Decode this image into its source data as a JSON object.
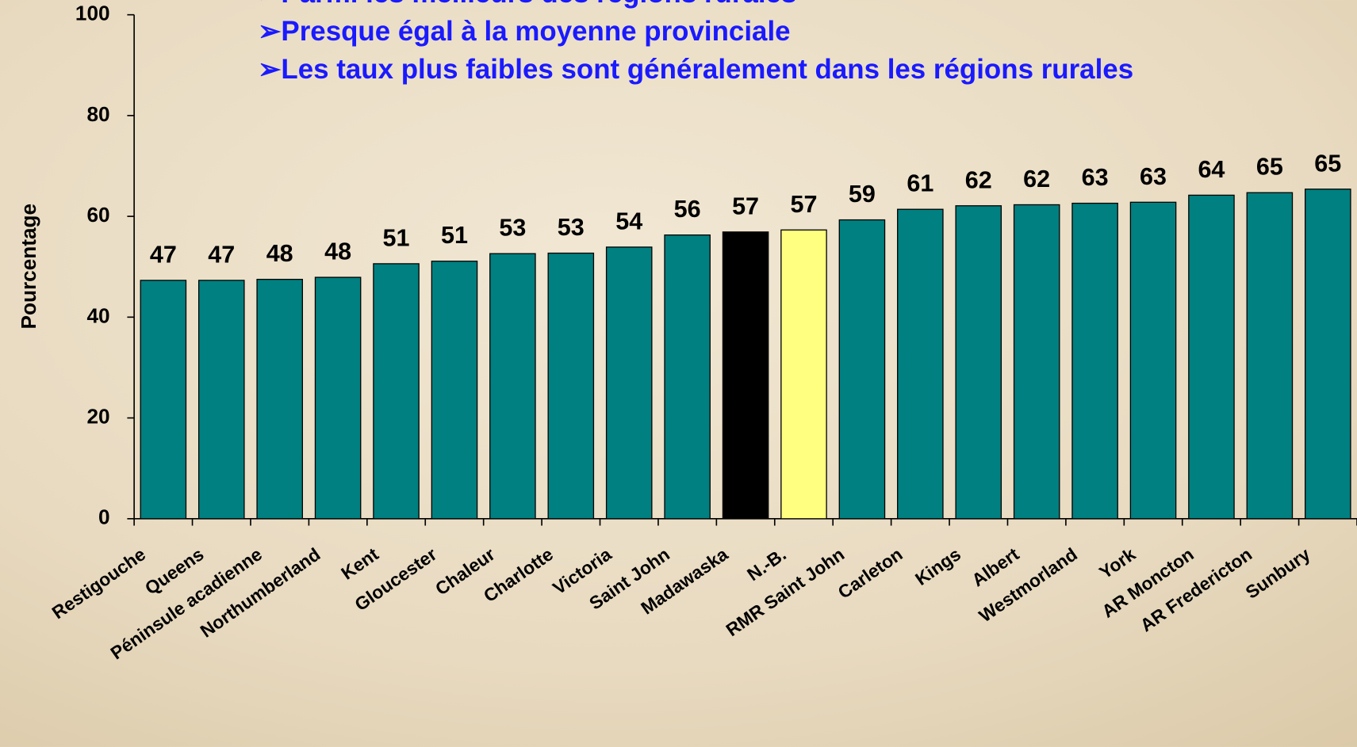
{
  "chart_data": {
    "type": "bar",
    "annotations": [
      "➢Parmi les meilleurs des régions rurales",
      "➢Presque égal à la moyenne provinciale",
      "➢Les taux plus faibles sont généralement dans les régions rurales"
    ],
    "y_label": "Pourcentage",
    "categories": [
      "Restigouche",
      "Queens",
      "Péninsule acadienne",
      "Northumberland",
      "Kent",
      "Gloucester",
      "Chaleur",
      "Charlotte",
      "Victoria",
      "Saint John",
      "Madawaska",
      "N.-B.",
      "RMR Saint John",
      "Carleton",
      "Kings",
      "Albert",
      "Westmorland",
      "York",
      "AR Moncton",
      "AR Fredericton",
      "Sunbury"
    ],
    "values": [
      47.3,
      47.3,
      47.5,
      47.9,
      50.6,
      51.1,
      52.6,
      52.7,
      53.9,
      56.3,
      56.9,
      57.3,
      59.3,
      61.4,
      62.1,
      62.3,
      62.6,
      62.8,
      64.2,
      64.7,
      65.4
    ],
    "value_labels": [
      "47",
      "47",
      "48",
      "48",
      "51",
      "51",
      "53",
      "53",
      "54",
      "56",
      "57",
      "57",
      "59",
      "61",
      "62",
      "62",
      "63",
      "63",
      "64",
      "65",
      "65"
    ],
    "colors": [
      "#008080",
      "#008080",
      "#008080",
      "#008080",
      "#008080",
      "#008080",
      "#008080",
      "#008080",
      "#008080",
      "#008080",
      "#000000",
      "#ffff80",
      "#008080",
      "#008080",
      "#008080",
      "#008080",
      "#008080",
      "#008080",
      "#008080",
      "#008080",
      "#008080"
    ],
    "ylim": [
      0,
      100
    ],
    "yticks": [
      0,
      20,
      40,
      60,
      80,
      100
    ],
    "annotation_color": "#1a1aff"
  }
}
